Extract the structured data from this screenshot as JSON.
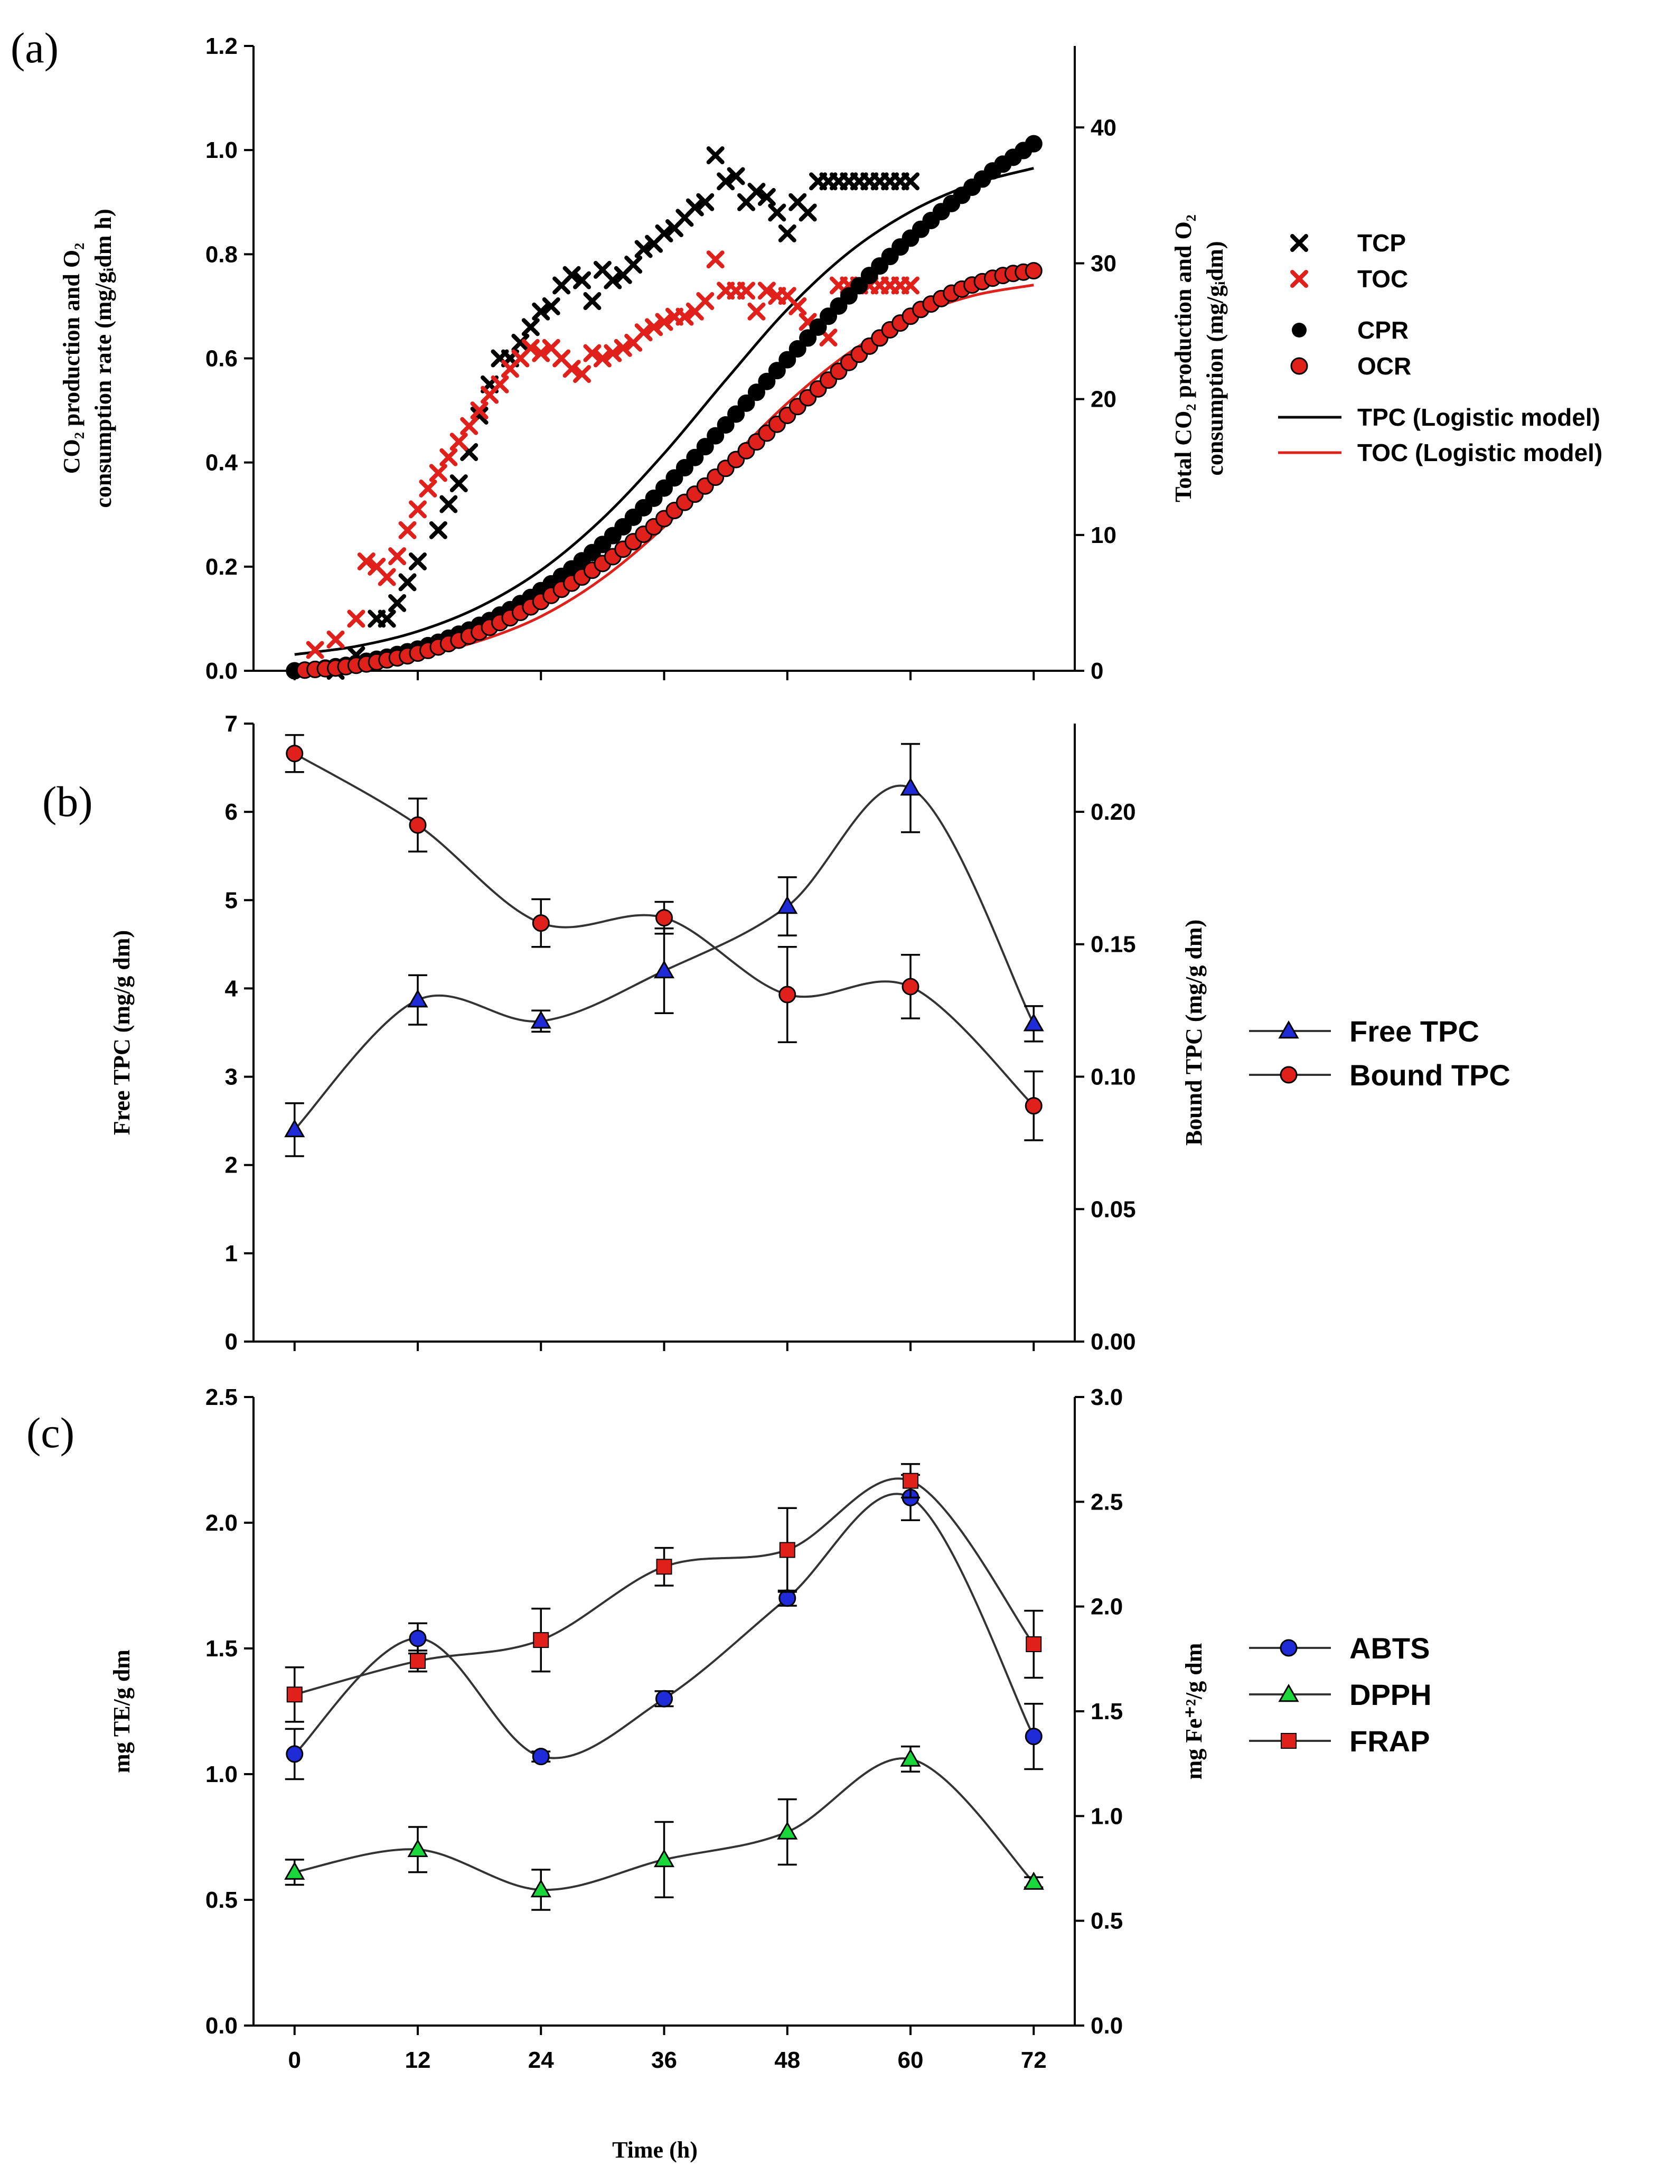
{
  "panel_labels": [
    "(a)",
    "(b)",
    "(c)"
  ],
  "xlabel": "Time (h)",
  "colors": {
    "black": "#000000",
    "red": "#e0201b",
    "blue": "#1f2bd6",
    "green": "#19d63a",
    "line": "#333333"
  },
  "chart_data": [
    {
      "id": "a",
      "type": "scatter",
      "ylabel_left": [
        "CO₂ production and O₂",
        "consumption rate (mg/gᵢdm h)"
      ],
      "ylabel_right": [
        "Total CO₂ production and O₂",
        "consumption (mg/gᵢdm)"
      ],
      "ylim_left": [
        0,
        1.2
      ],
      "ylim_right": [
        0,
        46
      ],
      "yticks_left": [
        "0.0",
        "0.2",
        "0.4",
        "0.6",
        "0.8",
        "1.0",
        "1.2"
      ],
      "yticks_right": [
        "0",
        "10",
        "20",
        "30",
        "40"
      ],
      "xlim": [
        -4,
        76
      ],
      "series": [
        {
          "name": "TCP",
          "marker": "x",
          "color": "black",
          "axis": "left",
          "x": [
            4,
            6,
            8,
            9,
            10,
            11,
            12,
            14,
            15,
            16,
            17,
            18,
            19,
            20,
            21,
            22,
            23,
            24,
            25,
            26,
            27,
            28,
            29,
            30,
            31,
            32,
            33,
            34,
            35,
            36,
            37,
            38,
            39,
            40,
            41,
            42,
            43,
            44,
            45,
            46,
            47,
            48,
            49,
            50,
            51,
            52,
            53,
            54,
            55,
            56,
            57,
            58,
            59,
            60
          ],
          "y": [
            0.0,
            0.03,
            0.1,
            0.1,
            0.13,
            0.17,
            0.21,
            0.27,
            0.32,
            0.36,
            0.42,
            0.49,
            0.55,
            0.6,
            0.6,
            0.63,
            0.66,
            0.69,
            0.7,
            0.74,
            0.76,
            0.75,
            0.71,
            0.77,
            0.75,
            0.76,
            0.78,
            0.81,
            0.82,
            0.84,
            0.85,
            0.87,
            0.89,
            0.9,
            0.99,
            0.94,
            0.95,
            0.9,
            0.92,
            0.91,
            0.88,
            0.84,
            0.9,
            0.88,
            0.94,
            0.94,
            0.94,
            0.94,
            0.94,
            0.94,
            0.94,
            0.94,
            0.94,
            0.94
          ]
        },
        {
          "name": "TOC",
          "marker": "x",
          "color": "red",
          "axis": "left",
          "x": [
            2,
            4,
            6,
            7,
            8,
            9,
            10,
            11,
            12,
            13,
            14,
            15,
            16,
            17,
            18,
            19,
            20,
            21,
            22,
            23,
            24,
            25,
            26,
            27,
            28,
            29,
            30,
            31,
            32,
            33,
            34,
            35,
            36,
            37,
            38,
            39,
            40,
            41,
            42,
            43,
            44,
            45,
            46,
            47,
            48,
            49,
            50,
            51,
            52,
            53,
            54,
            55,
            56,
            57,
            58,
            59,
            60
          ],
          "y": [
            0.04,
            0.06,
            0.1,
            0.21,
            0.2,
            0.18,
            0.22,
            0.27,
            0.31,
            0.35,
            0.38,
            0.41,
            0.44,
            0.47,
            0.5,
            0.53,
            0.55,
            0.58,
            0.6,
            0.62,
            0.61,
            0.62,
            0.6,
            0.58,
            0.57,
            0.61,
            0.6,
            0.61,
            0.62,
            0.63,
            0.65,
            0.66,
            0.67,
            0.68,
            0.68,
            0.69,
            0.71,
            0.79,
            0.73,
            0.73,
            0.73,
            0.69,
            0.73,
            0.72,
            0.72,
            0.7,
            0.67,
            0.66,
            0.64,
            0.74,
            0.74,
            0.74,
            0.74,
            0.74,
            0.74,
            0.74,
            0.74
          ]
        },
        {
          "name": "CPR",
          "marker": "circle",
          "color": "black",
          "axis": "right",
          "x": [
            0,
            1,
            2,
            3,
            4,
            5,
            6,
            7,
            8,
            9,
            10,
            11,
            12,
            13,
            14,
            15,
            16,
            17,
            18,
            19,
            20,
            21,
            22,
            23,
            24,
            25,
            26,
            27,
            28,
            29,
            30,
            31,
            32,
            33,
            34,
            35,
            36,
            37,
            38,
            39,
            40,
            41,
            42,
            43,
            44,
            45,
            46,
            47,
            48,
            49,
            50,
            51,
            52,
            53,
            54,
            55,
            56,
            57,
            58,
            59,
            60,
            61,
            62,
            63,
            64,
            65,
            66,
            67,
            68,
            69,
            70,
            71,
            72
          ],
          "y": [
            0,
            0.05,
            0.1,
            0.2,
            0.3,
            0.4,
            0.55,
            0.7,
            0.85,
            1.0,
            1.2,
            1.4,
            1.6,
            1.85,
            2.1,
            2.4,
            2.7,
            3.0,
            3.35,
            3.7,
            4.1,
            4.5,
            4.95,
            5.4,
            5.9,
            6.4,
            6.95,
            7.5,
            8.1,
            8.7,
            9.3,
            9.95,
            10.6,
            11.3,
            12.0,
            12.7,
            13.45,
            14.2,
            14.95,
            15.7,
            16.5,
            17.3,
            18.1,
            18.9,
            19.7,
            20.5,
            21.3,
            22.1,
            22.9,
            23.7,
            24.5,
            25.3,
            26.1,
            26.85,
            27.6,
            28.35,
            29.1,
            29.8,
            30.5,
            31.2,
            31.85,
            32.5,
            33.15,
            33.8,
            34.4,
            35.0,
            35.6,
            36.2,
            36.8,
            37.3,
            37.8,
            38.3,
            38.8
          ]
        },
        {
          "name": "OCR",
          "marker": "circle",
          "color": "red",
          "axis": "right",
          "x": [
            1,
            2,
            3,
            4,
            5,
            6,
            7,
            8,
            9,
            10,
            11,
            12,
            13,
            14,
            15,
            16,
            17,
            18,
            19,
            20,
            21,
            22,
            23,
            24,
            25,
            26,
            27,
            28,
            29,
            30,
            31,
            32,
            33,
            34,
            35,
            36,
            37,
            38,
            39,
            40,
            41,
            42,
            43,
            44,
            45,
            46,
            47,
            48,
            49,
            50,
            51,
            52,
            53,
            54,
            55,
            56,
            57,
            58,
            59,
            60,
            61,
            62,
            63,
            64,
            65,
            66,
            67,
            68,
            69,
            70,
            71,
            72
          ],
          "y": [
            0.05,
            0.1,
            0.15,
            0.2,
            0.3,
            0.4,
            0.5,
            0.65,
            0.8,
            0.95,
            1.1,
            1.3,
            1.5,
            1.75,
            2.0,
            2.25,
            2.55,
            2.85,
            3.2,
            3.55,
            3.9,
            4.3,
            4.7,
            5.1,
            5.55,
            6.0,
            6.45,
            6.9,
            7.4,
            7.9,
            8.4,
            8.95,
            9.5,
            10.05,
            10.6,
            11.2,
            11.8,
            12.4,
            13.0,
            13.6,
            14.25,
            14.9,
            15.55,
            16.2,
            16.85,
            17.5,
            18.15,
            18.8,
            19.45,
            20.1,
            20.75,
            21.4,
            22.05,
            22.7,
            23.3,
            23.9,
            24.5,
            25.1,
            25.6,
            26.1,
            26.6,
            27.0,
            27.4,
            27.8,
            28.1,
            28.4,
            28.65,
            28.9,
            29.1,
            29.25,
            29.35,
            29.45
          ]
        },
        {
          "name": "TPC (Logistic model)",
          "marker": "line",
          "color": "black",
          "axis": "right",
          "x": [
            0,
            6,
            12,
            18,
            24,
            30,
            36,
            42,
            48,
            54,
            60,
            66,
            72
          ],
          "y": [
            1.2,
            1.8,
            2.9,
            4.7,
            7.4,
            11.2,
            16.0,
            21.4,
            26.6,
            30.8,
            33.8,
            35.8,
            37.0
          ]
        },
        {
          "name": "TOC (Logistic model)",
          "marker": "line",
          "color": "red",
          "axis": "right",
          "x": [
            0,
            6,
            12,
            18,
            24,
            30,
            36,
            42,
            48,
            54,
            60,
            66,
            72
          ],
          "y": [
            0.2,
            0.5,
            1.1,
            2.2,
            4.0,
            6.8,
            10.6,
            15.2,
            19.7,
            23.4,
            26.0,
            27.6,
            28.4
          ]
        }
      ],
      "legend": [
        "TCP",
        "TOC",
        "CPR",
        "OCR",
        "TPC (Logistic model)",
        "TOC (Logistic model)"
      ]
    },
    {
      "id": "b",
      "type": "line",
      "ylabel_left": "Free TPC (mg/g dm)",
      "ylabel_right": "Bound TPC (mg/g dm)",
      "ylim_left": [
        0,
        7
      ],
      "ylim_right": [
        0,
        0.2333
      ],
      "yticks_left": [
        "0",
        "1",
        "2",
        "3",
        "4",
        "5",
        "6",
        "7"
      ],
      "yticks_right": [
        "0.00",
        "0.05",
        "0.10",
        "0.15",
        "0.20"
      ],
      "xlim": [
        -4,
        76
      ],
      "x": [
        0,
        12,
        24,
        36,
        48,
        60,
        72
      ],
      "series": [
        {
          "name": "Free TPC",
          "marker": "triangle",
          "color": "blue",
          "axis": "left",
          "values": [
            2.4,
            3.87,
            3.63,
            4.2,
            4.93,
            6.27,
            3.6
          ],
          "err": [
            0.3,
            0.28,
            0.12,
            0.48,
            0.33,
            0.5,
            0.2
          ]
        },
        {
          "name": "Bound TPC",
          "marker": "circle",
          "color": "red",
          "axis": "right",
          "values": [
            0.222,
            0.195,
            0.158,
            0.16,
            0.131,
            0.134,
            0.089
          ],
          "err": [
            0.007,
            0.01,
            0.009,
            0.006,
            0.018,
            0.012,
            0.013
          ]
        }
      ],
      "legend": [
        "Free TPC",
        "Bound TPC"
      ]
    },
    {
      "id": "c",
      "type": "line",
      "ylabel_left": "mg TE/g dm",
      "ylabel_right": "mg Fe⁺²/g dm",
      "ylim_left": [
        0,
        2.5
      ],
      "ylim_right": [
        0,
        3.0
      ],
      "yticks_left": [
        "0.0",
        "0.5",
        "1.0",
        "1.5",
        "2.0",
        "2.5"
      ],
      "yticks_right": [
        "0.0",
        "0.5",
        "1.0",
        "1.5",
        "2.0",
        "2.5",
        "3.0"
      ],
      "xlim": [
        -4,
        76
      ],
      "x": [
        0,
        12,
        24,
        36,
        48,
        60,
        72
      ],
      "xticks": [
        "0",
        "12",
        "24",
        "36",
        "48",
        "60",
        "72"
      ],
      "series": [
        {
          "name": "ABTS",
          "marker": "circle",
          "color": "blue",
          "axis": "left",
          "values": [
            1.08,
            1.54,
            1.07,
            1.3,
            1.7,
            2.1,
            1.15
          ],
          "err": [
            0.1,
            0.06,
            0.02,
            0.03,
            0.03,
            0.09,
            0.13
          ]
        },
        {
          "name": "DPPH",
          "marker": "triangle",
          "color": "green",
          "axis": "left",
          "values": [
            0.61,
            0.7,
            0.54,
            0.66,
            0.77,
            1.06,
            0.57
          ],
          "err": [
            0.05,
            0.09,
            0.08,
            0.15,
            0.13,
            0.05,
            0.02
          ]
        },
        {
          "name": "FRAP",
          "marker": "square",
          "color": "red",
          "axis": "right",
          "values": [
            1.58,
            1.74,
            1.84,
            2.19,
            2.27,
            2.6,
            1.82
          ],
          "err": [
            0.13,
            0.05,
            0.15,
            0.09,
            0.2,
            0.08,
            0.16
          ]
        }
      ],
      "legend": [
        "ABTS",
        "DPPH",
        "FRAP"
      ]
    }
  ]
}
